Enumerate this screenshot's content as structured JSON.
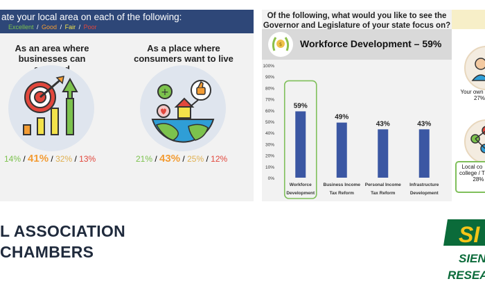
{
  "left_slide": {
    "question": "ate your local area on each of the following:",
    "legend": [
      {
        "label": "Excellent",
        "color": "#7cc24d"
      },
      {
        "label": "Good",
        "color": "#f39c34"
      },
      {
        "label": "Fair",
        "color": "#f3e24a"
      },
      {
        "label": "Poor",
        "color": "#e2473c"
      }
    ],
    "legend_sep": " / ",
    "columns": [
      {
        "title_line1": "As an area where",
        "title_line2": "businesses can succeed",
        "icon": "growth-target-chart-icon",
        "values": [
          "14%",
          "41%",
          "32%",
          "13%"
        ]
      },
      {
        "title_line1": "As a place where",
        "title_line2": "consumers want to live",
        "icon": "globe-community-icon",
        "values": [
          "21%",
          "43%",
          "25%",
          "12%"
        ]
      }
    ],
    "rating_colors": [
      "#7cc24d",
      "#f39c34",
      "#e0b050",
      "#e2473c"
    ],
    "sep": " / "
  },
  "right_slide": {
    "question_line1": "Of the following, what would you like to see the",
    "question_line2": "Governor and Legislature of your state focus on?",
    "banner_text": "Workforce Development – 59%",
    "banner_icon": "laurel-wreath-icon",
    "bar_color": "#3b57a3",
    "highlight_color": "#7fbf5a"
  },
  "chart_data": {
    "type": "bar",
    "categories": [
      [
        "Workforce",
        "Development"
      ],
      [
        "Business Income",
        "Tax Reform"
      ],
      [
        "Personal Income",
        "Tax Reform"
      ],
      [
        "Infrastructure",
        "Development"
      ]
    ],
    "values": [
      59,
      49,
      43,
      43
    ],
    "data_labels": [
      "59%",
      "49%",
      "43%",
      "43%"
    ],
    "ylim": [
      0,
      100
    ],
    "yticks": [
      "0%",
      "10%",
      "20%",
      "30%",
      "40%",
      "50%",
      "60%",
      "70%",
      "80%",
      "90%",
      "100%"
    ],
    "highlight_index": 0,
    "grid": false
  },
  "far_slide": {
    "label1_line1": "Your own",
    "label1_line2": "27%",
    "label2_line1": "Local co",
    "label2_line2": "college / T",
    "label2_line3": "28%"
  },
  "footer": {
    "title_line1": "L ASSOCIATION",
    "title_line2": "CHAMBERS",
    "logo_text1": "SI",
    "logo_text2": "SIENA",
    "logo_text3": "RESEARC",
    "logo_color": "#0b6b3a",
    "logo_accent": "#f5c518"
  }
}
